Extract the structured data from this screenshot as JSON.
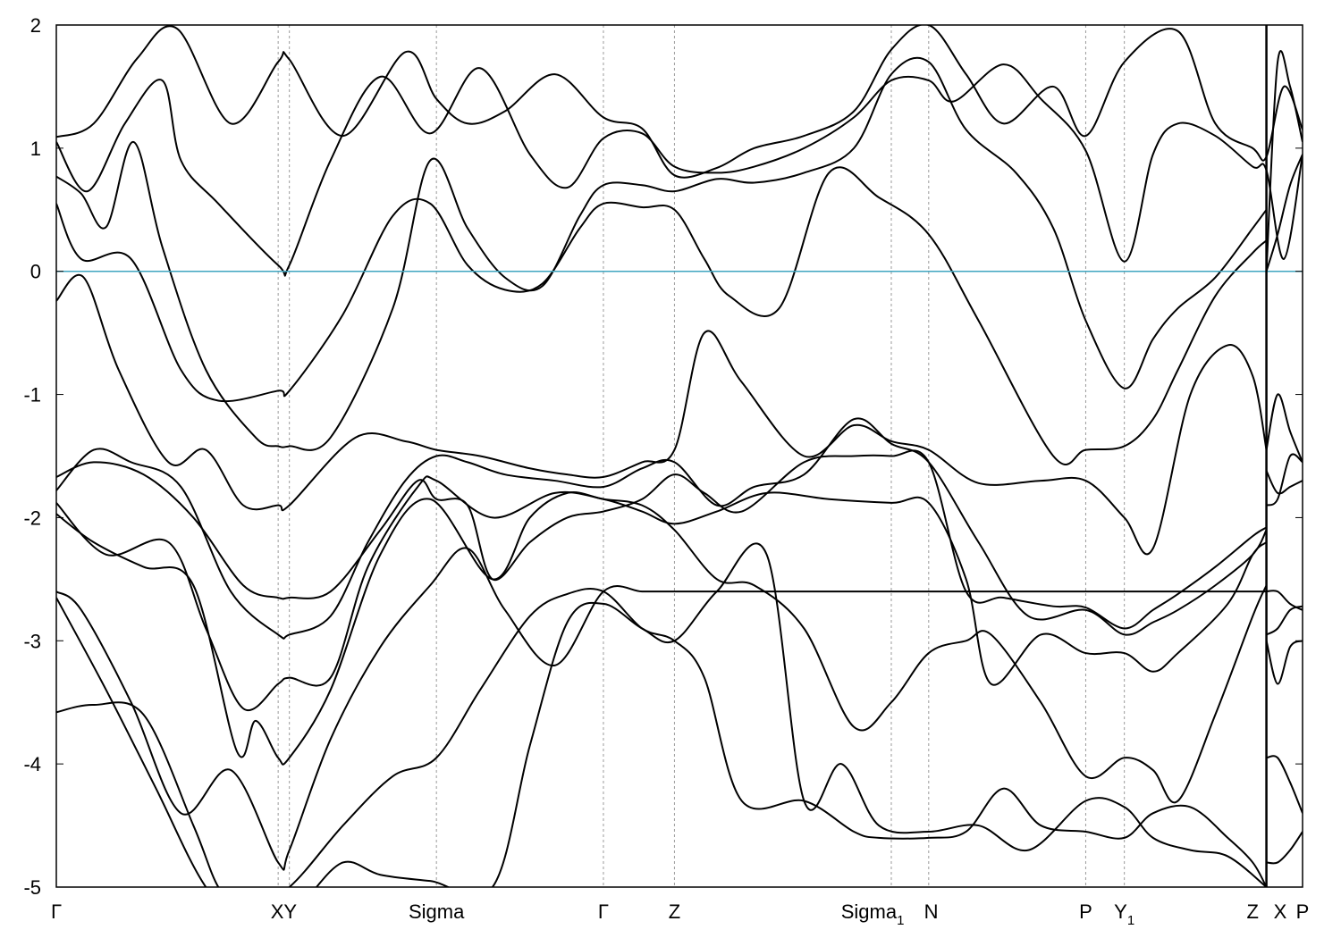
{
  "chart_data": {
    "type": "line",
    "title": "",
    "xlabel": "",
    "ylabel": "",
    "xlim": [
      0,
      1
    ],
    "ylim": [
      -5,
      2
    ],
    "grid": false,
    "y_ticks": [
      {
        "value": -5,
        "label": "-5"
      },
      {
        "value": -4,
        "label": "-4"
      },
      {
        "value": -3,
        "label": "-3"
      },
      {
        "value": -2,
        "label": "-2"
      },
      {
        "value": -1,
        "label": "-1"
      },
      {
        "value": 0,
        "label": "0"
      },
      {
        "value": 1,
        "label": "1"
      },
      {
        "value": 2,
        "label": "2"
      }
    ],
    "k_points": [
      {
        "label": "Γ",
        "sub": "",
        "x": 0.0,
        "line": false
      },
      {
        "label": "X",
        "sub": "",
        "x": 0.178,
        "line": true
      },
      {
        "label": "Y",
        "sub": "",
        "x": 0.187,
        "line": true
      },
      {
        "label": "Sigma",
        "sub": "",
        "x": 0.305,
        "line": true
      },
      {
        "label": "Γ",
        "sub": "",
        "x": 0.439,
        "line": true
      },
      {
        "label": "Z",
        "sub": "",
        "x": 0.496,
        "line": true
      },
      {
        "label": "Sigma",
        "sub": "1",
        "x": 0.67,
        "line": true
      },
      {
        "label": "N",
        "sub": "",
        "x": 0.7,
        "line": true
      },
      {
        "label": "P",
        "sub": "",
        "x": 0.826,
        "line": true
      },
      {
        "label": "Y",
        "sub": "1",
        "x": 0.857,
        "line": true
      },
      {
        "label": "Z",
        "sub": "",
        "x": 0.971,
        "line": false
      },
      {
        "label": "X",
        "sub": "",
        "x": 0.971,
        "line": false
      },
      {
        "label": "P",
        "sub": "",
        "x": 1.0,
        "line": false
      }
    ],
    "x_tick_labels": [
      {
        "text": "Γ",
        "sub": "",
        "x": 0.0
      },
      {
        "text": "XY",
        "sub": "",
        "x": 0.1825
      },
      {
        "text": "Sigma",
        "sub": "",
        "x": 0.305
      },
      {
        "text": "Γ",
        "sub": "",
        "x": 0.439
      },
      {
        "text": "Z",
        "sub": "",
        "x": 0.496
      },
      {
        "text": "Sigma",
        "sub": "1",
        "x": 0.655
      },
      {
        "text": "N",
        "sub": "",
        "x": 0.702
      },
      {
        "text": "P",
        "sub": "",
        "x": 0.826
      },
      {
        "text": "Y",
        "sub": "1",
        "x": 0.857
      },
      {
        "text": "Z",
        "sub": "",
        "x": 0.96
      },
      {
        "text": "X",
        "sub": "",
        "x": 0.982
      },
      {
        "text": "P",
        "sub": "",
        "x": 1.0
      }
    ],
    "panel_break_x": 0.971,
    "fermi_level": 0,
    "fermi_color": "#3fa5c0",
    "band_color": "#000000",
    "series": [
      {
        "x": [
          0,
          0.03,
          0.065,
          0.097,
          0.14,
          0.178,
          0.187,
          0.23,
          0.28,
          0.305,
          0.33,
          0.36,
          0.4,
          0.439,
          0.47,
          0.496,
          0.53,
          0.56,
          0.6,
          0.64,
          0.67,
          0.7,
          0.73,
          0.76,
          0.8,
          0.826,
          0.857,
          0.9,
          0.93,
          0.96,
          0.971,
          0.985,
          1.0
        ],
        "y": [
          1.09,
          1.2,
          1.73,
          1.97,
          1.2,
          1.7,
          1.72,
          1.1,
          1.78,
          1.4,
          1.2,
          1.3,
          1.6,
          1.25,
          1.16,
          0.78,
          0.84,
          1.0,
          1.1,
          1.3,
          1.8,
          2.0,
          1.6,
          1.2,
          1.5,
          1.1,
          1.7,
          1.95,
          1.2,
          1.0,
          0.93,
          1.5,
          1.15
        ]
      },
      {
        "x": [
          0,
          0.025,
          0.055,
          0.085,
          0.1,
          0.13,
          0.178,
          0.187,
          0.22,
          0.26,
          0.3,
          0.34,
          0.38,
          0.41,
          0.439,
          0.47,
          0.496,
          0.53,
          0.56,
          0.6,
          0.64,
          0.67,
          0.7,
          0.72,
          0.76,
          0.79,
          0.826,
          0.857,
          0.88,
          0.9,
          0.93,
          0.96,
          0.971,
          0.985,
          1.0
        ],
        "y": [
          1.05,
          0.65,
          1.2,
          1.55,
          0.9,
          0.55,
          0.05,
          0.05,
          0.9,
          1.58,
          1.12,
          1.65,
          0.95,
          0.68,
          1.08,
          1.12,
          0.85,
          0.8,
          0.85,
          1.0,
          1.25,
          1.55,
          1.55,
          1.38,
          1.68,
          1.4,
          0.98,
          0.08,
          0.95,
          1.2,
          1.1,
          0.85,
          0.82,
          0.1,
          0.95
        ]
      },
      {
        "x": [
          0,
          0.02,
          0.04,
          0.062,
          0.085,
          0.12,
          0.16,
          0.178,
          0.187,
          0.22,
          0.27,
          0.3,
          0.33,
          0.36,
          0.39,
          0.42,
          0.439,
          0.47,
          0.496,
          0.53,
          0.56,
          0.6,
          0.64,
          0.67,
          0.7,
          0.73,
          0.77,
          0.8,
          0.826,
          0.857,
          0.88,
          0.9,
          0.93,
          0.96,
          0.971
        ],
        "y": [
          0.77,
          0.63,
          0.36,
          1.05,
          0.2,
          -0.8,
          -1.35,
          -1.42,
          -1.42,
          -1.35,
          -0.3,
          0.9,
          0.35,
          -0.05,
          -0.12,
          0.45,
          0.7,
          0.7,
          0.65,
          0.75,
          0.72,
          0.8,
          1.0,
          1.6,
          1.7,
          1.15,
          0.8,
          0.35,
          -0.4,
          -0.95,
          -0.55,
          -0.3,
          -0.05,
          0.35,
          0.5
        ]
      },
      {
        "x": [
          0,
          0.02,
          0.06,
          0.1,
          0.13,
          0.178,
          0.187,
          0.23,
          0.27,
          0.3,
          0.33,
          0.36,
          0.39,
          0.42,
          0.439,
          0.47,
          0.496,
          0.52,
          0.54,
          0.58,
          0.62,
          0.66,
          0.7,
          0.74,
          0.8,
          0.826,
          0.857,
          0.88,
          0.9,
          0.93,
          0.96,
          0.971
        ],
        "y": [
          0.55,
          0.1,
          0.1,
          -0.8,
          -1.05,
          -0.97,
          -0.97,
          -0.35,
          0.45,
          0.55,
          0.05,
          -0.15,
          -0.1,
          0.35,
          0.55,
          0.52,
          0.5,
          0.1,
          -0.2,
          -0.3,
          0.8,
          0.6,
          0.3,
          -0.4,
          -1.5,
          -1.45,
          -1.42,
          -1.2,
          -0.8,
          -0.2,
          0.15,
          0.25
        ]
      },
      {
        "x": [
          0,
          0.022,
          0.05,
          0.09,
          0.12,
          0.15,
          0.178,
          0.187,
          0.24,
          0.28,
          0.305,
          0.34,
          0.38,
          0.41,
          0.439,
          0.47,
          0.496,
          0.52,
          0.55,
          0.6,
          0.64,
          0.67,
          0.7,
          0.74,
          0.79,
          0.826,
          0.857,
          0.88,
          0.91,
          0.94,
          0.96,
          0.971
        ],
        "y": [
          -0.24,
          -0.05,
          -0.8,
          -1.55,
          -1.45,
          -1.9,
          -1.9,
          -1.9,
          -1.35,
          -1.38,
          -1.45,
          -1.5,
          -1.6,
          -1.65,
          -1.67,
          -1.55,
          -1.45,
          -0.5,
          -0.9,
          -1.5,
          -1.25,
          -1.38,
          -1.45,
          -1.72,
          -1.7,
          -1.7,
          -2.0,
          -2.25,
          -1.0,
          -0.6,
          -0.85,
          -1.45
        ]
      },
      {
        "x": [
          0,
          0.03,
          0.07,
          0.11,
          0.15,
          0.178,
          0.187,
          0.22,
          0.26,
          0.29,
          0.305,
          0.33,
          0.35,
          0.38,
          0.41,
          0.439,
          0.47,
          0.496,
          0.52,
          0.55,
          0.6,
          0.64,
          0.67,
          0.7,
          0.73,
          0.76,
          0.8,
          0.826,
          0.857,
          0.88,
          0.9,
          0.93,
          0.96,
          0.971
        ],
        "y": [
          -1.67,
          -1.55,
          -1.65,
          -2.0,
          -2.55,
          -2.65,
          -2.65,
          -2.6,
          -2.1,
          -1.7,
          -1.85,
          -1.9,
          -2.5,
          -2.2,
          -2.0,
          -1.95,
          -1.85,
          -1.65,
          -1.8,
          -1.95,
          -1.55,
          -1.5,
          -1.5,
          -1.55,
          -2.6,
          -2.65,
          -2.72,
          -2.73,
          -2.9,
          -2.75,
          -2.62,
          -2.4,
          -2.15,
          -2.08
        ]
      },
      {
        "x": [
          0,
          0.03,
          0.06,
          0.1,
          0.14,
          0.178,
          0.187,
          0.22,
          0.25,
          0.28,
          0.305,
          0.33,
          0.36,
          0.4,
          0.439,
          0.47,
          0.496,
          0.53,
          0.56,
          0.6,
          0.64,
          0.67,
          0.7,
          0.74,
          0.78,
          0.826,
          0.857,
          0.88,
          0.9,
          0.93,
          0.96,
          0.971
        ],
        "y": [
          -1.78,
          -1.45,
          -1.55,
          -1.75,
          -2.6,
          -2.95,
          -2.95,
          -2.8,
          -2.2,
          -1.7,
          -1.5,
          -1.55,
          -1.65,
          -1.7,
          -1.75,
          -1.6,
          -1.55,
          -1.9,
          -1.75,
          -1.65,
          -1.2,
          -1.4,
          -1.55,
          -2.2,
          -2.8,
          -2.75,
          -2.95,
          -2.85,
          -2.75,
          -2.55,
          -2.3,
          -2.1
        ]
      },
      {
        "x": [
          0,
          0.04,
          0.09,
          0.12,
          0.15,
          0.178,
          0.187,
          0.22,
          0.25,
          0.29,
          0.305,
          0.35,
          0.4,
          0.439,
          0.47,
          0.496,
          0.53,
          0.57,
          0.62,
          0.67,
          0.7,
          0.73,
          0.75,
          0.79,
          0.826,
          0.857,
          0.88,
          0.9,
          0.94,
          0.96,
          0.971
        ],
        "y": [
          -1.88,
          -2.3,
          -2.2,
          -2.9,
          -3.55,
          -3.35,
          -3.3,
          -3.3,
          -2.4,
          -1.75,
          -1.7,
          -2.0,
          -1.8,
          -1.85,
          -1.95,
          -2.05,
          -1.95,
          -1.8,
          -1.85,
          -1.88,
          -1.88,
          -2.5,
          -3.35,
          -2.95,
          -3.1,
          -3.1,
          -3.25,
          -3.1,
          -2.7,
          -2.3,
          -2.2
        ]
      },
      {
        "x": [
          0,
          0.03,
          0.07,
          0.11,
          0.145,
          0.16,
          0.178,
          0.187,
          0.22,
          0.26,
          0.3,
          0.35,
          0.38,
          0.41,
          0.439,
          0.47,
          0.496,
          0.53,
          0.56,
          0.6,
          0.64,
          0.67,
          0.7,
          0.73,
          0.75,
          0.79,
          0.826,
          0.857,
          0.88,
          0.9,
          0.93,
          0.96,
          0.971
        ],
        "y": [
          -1.97,
          -2.2,
          -2.4,
          -2.55,
          -3.9,
          -3.65,
          -3.95,
          -3.95,
          -3.4,
          -2.3,
          -1.85,
          -2.5,
          -2.0,
          -1.8,
          -1.85,
          -1.9,
          -2.1,
          -2.5,
          -2.55,
          -2.9,
          -3.7,
          -3.5,
          -3.1,
          -3.0,
          -2.95,
          -3.5,
          -4.1,
          -3.95,
          -4.05,
          -4.3,
          -3.6,
          -2.8,
          -2.55
        ]
      },
      {
        "x": [
          0,
          0.02,
          0.06,
          0.1,
          0.14,
          0.178,
          0.187,
          0.22,
          0.26,
          0.3,
          0.33,
          0.36,
          0.4,
          0.439,
          0.47,
          0.496,
          0.53,
          0.57,
          0.6,
          0.63,
          0.67,
          0.7,
          0.74,
          0.77,
          0.8,
          0.826,
          0.857,
          0.88,
          0.91,
          0.94,
          0.96,
          0.971
        ],
        "y": [
          -2.6,
          -2.75,
          -3.5,
          -4.4,
          -4.05,
          -4.8,
          -4.7,
          -3.8,
          -3.05,
          -2.55,
          -2.25,
          -2.75,
          -3.2,
          -2.6,
          -2.6,
          -2.6,
          -2.6,
          -2.6,
          -2.6,
          -2.6,
          -2.6,
          -2.6,
          -2.6,
          -2.6,
          -2.6,
          -2.6,
          -2.6,
          -2.6,
          -2.6,
          -2.6,
          -2.6,
          -2.6
        ]
      },
      {
        "x": [
          0,
          0.03,
          0.07,
          0.11,
          0.13,
          0.15,
          0.187,
          0.23,
          0.27,
          0.305,
          0.34,
          0.38,
          0.41,
          0.439,
          0.47,
          0.496,
          0.52,
          0.55,
          0.6,
          0.64,
          0.66,
          0.7,
          0.73,
          0.76,
          0.79,
          0.826,
          0.857,
          0.88,
          0.91,
          0.94,
          0.96,
          0.971
        ],
        "y": [
          -3.58,
          -3.52,
          -3.6,
          -4.5,
          -5.0,
          -5.2,
          -5.0,
          -4.5,
          -4.1,
          -3.95,
          -3.4,
          -2.8,
          -2.62,
          -2.6,
          -2.9,
          -3.0,
          -3.3,
          -4.3,
          -4.3,
          -4.55,
          -4.6,
          -4.6,
          -4.55,
          -4.2,
          -4.5,
          -4.55,
          -4.6,
          -4.4,
          -4.35,
          -4.6,
          -4.8,
          -5.0
        ]
      },
      {
        "x": [
          0,
          0.04,
          0.08,
          0.12,
          0.16,
          0.178,
          0.2,
          0.23,
          0.26,
          0.3,
          0.35,
          0.38,
          0.41,
          0.439,
          0.47,
          0.496,
          0.53,
          0.57,
          0.6,
          0.63,
          0.66,
          0.7,
          0.74,
          0.78,
          0.826,
          0.857,
          0.88,
          0.91,
          0.94,
          0.971
        ],
        "y": [
          -2.65,
          -3.4,
          -4.2,
          -5.0,
          -5.4,
          -5.3,
          -5.1,
          -4.8,
          -4.9,
          -4.95,
          -5.0,
          -3.85,
          -2.85,
          -2.7,
          -2.9,
          -3.0,
          -2.6,
          -2.3,
          -4.3,
          -4.0,
          -4.5,
          -4.55,
          -4.5,
          -4.7,
          -4.3,
          -4.35,
          -4.6,
          -4.7,
          -4.75,
          -5.0
        ]
      }
    ],
    "right_panel_series": [
      {
        "x": [
          0.971,
          0.98,
          0.99,
          1.0
        ],
        "y": [
          0.0,
          1.7,
          1.5,
          1.05
        ]
      },
      {
        "x": [
          0.971,
          0.98,
          0.99,
          1.0
        ],
        "y": [
          0.0,
          0.3,
          0.7,
          0.95
        ]
      },
      {
        "x": [
          0.971,
          0.98,
          0.99,
          1.0
        ],
        "y": [
          -1.45,
          -1.0,
          -1.3,
          -1.55
        ]
      },
      {
        "x": [
          0.971,
          0.98,
          0.99,
          1.0
        ],
        "y": [
          -1.9,
          -1.85,
          -1.5,
          -1.55
        ]
      },
      {
        "x": [
          0.971,
          0.98,
          0.99,
          1.0
        ],
        "y": [
          -1.62,
          -1.8,
          -1.75,
          -1.7
        ]
      },
      {
        "x": [
          0.971,
          0.98,
          0.99,
          1.0
        ],
        "y": [
          -2.6,
          -2.6,
          -2.7,
          -2.75
        ]
      },
      {
        "x": [
          0.971,
          0.98,
          0.99,
          1.0
        ],
        "y": [
          -2.95,
          -2.9,
          -2.75,
          -2.72
        ]
      },
      {
        "x": [
          0.971,
          0.98,
          0.99,
          1.0
        ],
        "y": [
          -3.0,
          -3.35,
          -3.05,
          -3.0
        ]
      },
      {
        "x": [
          0.971,
          0.98,
          0.99,
          1.0
        ],
        "y": [
          -3.95,
          -3.95,
          -4.15,
          -4.4
        ]
      },
      {
        "x": [
          0.971,
          0.98,
          0.99,
          1.0
        ],
        "y": [
          -4.8,
          -4.8,
          -4.7,
          -4.55
        ]
      }
    ]
  }
}
